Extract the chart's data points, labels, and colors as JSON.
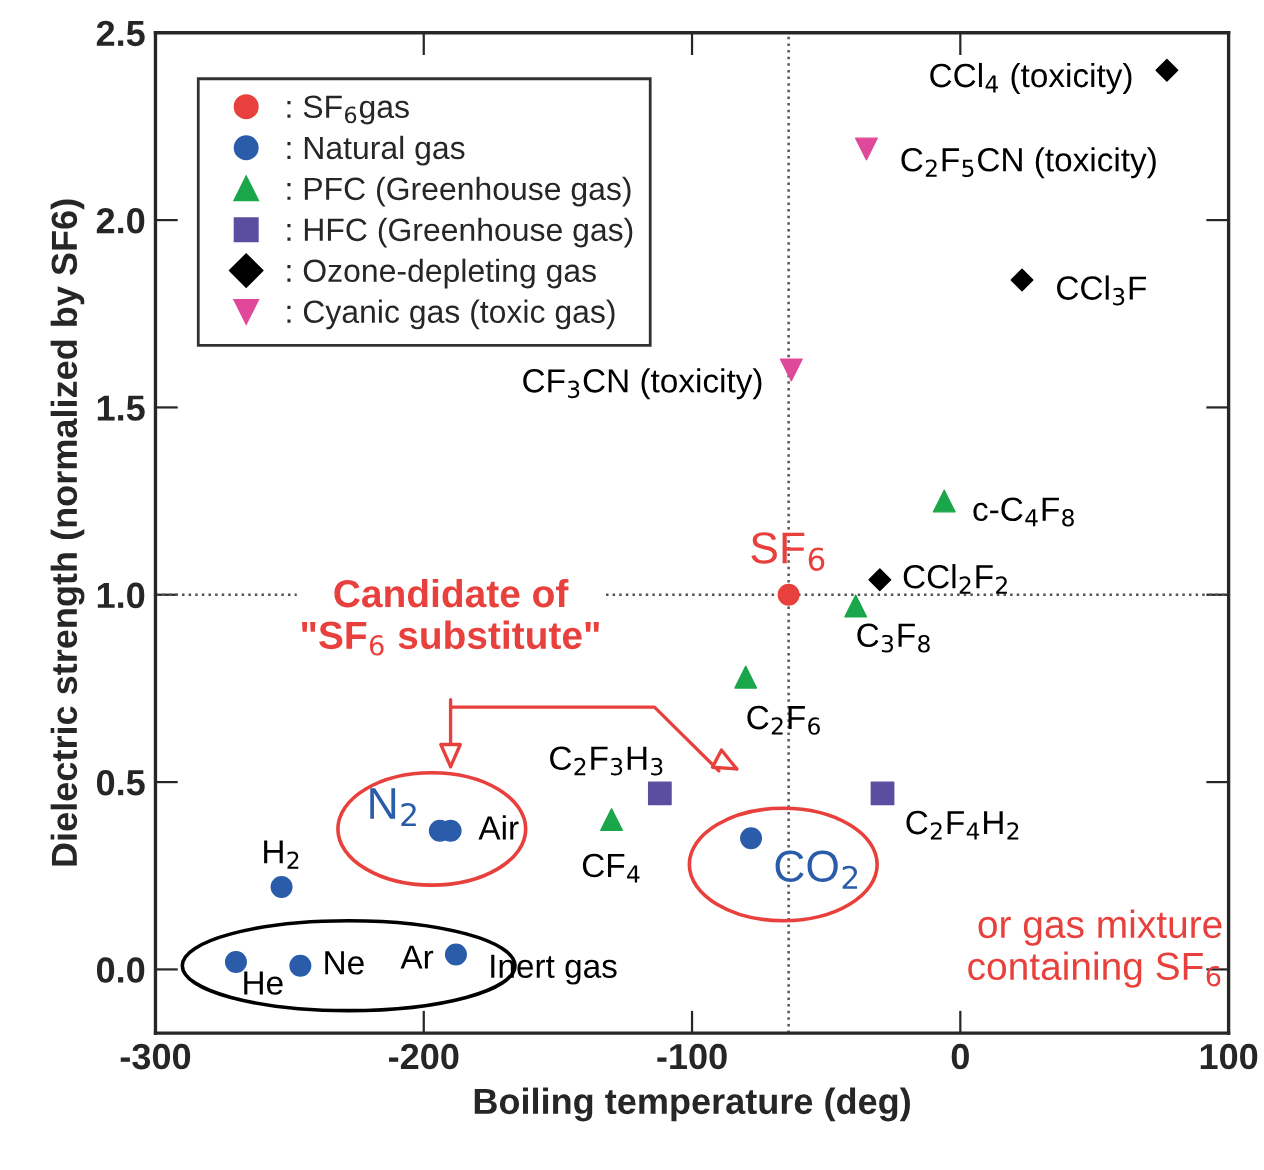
{
  "chart_data": {
    "type": "scatter",
    "xlabel": "Boiling temperature (deg)",
    "ylabel": "Dielectric strength (normalized by SF6)",
    "xlim": [
      -300,
      100
    ],
    "ylim": [
      -0.17,
      2.5
    ],
    "xticks": [
      -300,
      -200,
      -100,
      0,
      100
    ],
    "yticks": [
      {
        "value": 0,
        "label": "0.0"
      },
      {
        "value": 0.5,
        "label": "0.5"
      },
      {
        "value": 1.0,
        "label": "1.0"
      },
      {
        "value": 1.5,
        "label": "1.5"
      },
      {
        "value": 2.0,
        "label": "2.0"
      },
      {
        "value": 2.5,
        "label": "2.5"
      }
    ],
    "grid": false,
    "legend": "top left",
    "series": [
      {
        "name": ": SF$_{6}$gas",
        "color": "#e8403c",
        "marker": "circle",
        "x": [
          -64
        ],
        "values": [
          1.0
        ]
      },
      {
        "name": ": Natural gas",
        "color": "#2a5caa",
        "marker": "circle",
        "x": [
          -78,
          -194,
          -190,
          -253,
          -270,
          -246,
          -188
        ],
        "values": [
          0.35,
          0.37,
          0.37,
          0.22,
          0.02,
          0.01,
          0.04
        ]
      },
      {
        "name": ": PFC (Greenhouse gas)",
        "color": "#1aa64a",
        "marker": "triangle",
        "x": [
          -6,
          -39,
          -80,
          -130
        ],
        "values": [
          1.25,
          0.97,
          0.78,
          0.4
        ]
      },
      {
        "name": ": HFC (Greenhouse gas)",
        "color": "#5b4ea0",
        "marker": "square",
        "x": [
          -112,
          -29
        ],
        "values": [
          0.47,
          0.47
        ]
      },
      {
        "name": ": Ozone-depleting gas",
        "color": "#000000",
        "marker": "diamond",
        "x": [
          77,
          23,
          -30
        ],
        "values": [
          2.4,
          1.84,
          1.04
        ]
      },
      {
        "name": ": Cyanic gas (toxic gas)",
        "color": "#e0489a",
        "marker": "triangle_down",
        "x": [
          -35,
          -63
        ],
        "values": [
          2.19,
          1.6
        ]
      }
    ],
    "ref_lines": [
      {
        "axis": "x",
        "value": -64,
        "line_style": "dotted",
        "color": "#555555"
      },
      {
        "axis": "y",
        "value": 1.0,
        "line_style": "dotted",
        "color": "#555555"
      }
    ],
    "annotations": [
      {
        "text": "CCl$_{4}$ (toxicity)",
        "x": 77,
        "y": 2.4
      },
      {
        "text": "C$_{2}$F$_{5}$CN (toxicity)",
        "x": -35,
        "y": 2.19
      },
      {
        "text": "CCl$_{3}$F",
        "x": 23,
        "y": 1.84
      },
      {
        "text": "CF$_{3}$CN (toxicity)",
        "x": -63,
        "y": 1.6
      },
      {
        "text": "c-C$_{4}$F$_{8}$",
        "x": -6,
        "y": 1.25
      },
      {
        "text": "SF$_{6}$",
        "x": -64,
        "y": 1.0
      },
      {
        "text": "CCl$_{2}$F$_{2}$",
        "x": -30,
        "y": 1.04
      },
      {
        "text": "C$_{3}$F$_{8}$",
        "x": -39,
        "y": 0.97
      },
      {
        "text": "C$_{2}$F$_{6}$",
        "x": -80,
        "y": 0.78
      },
      {
        "text": "C$_{2}$F$_{3}$H$_{3}$",
        "x": -112,
        "y": 0.47
      },
      {
        "text": "C$_{2}$F$_{4}$H$_{2}$",
        "x": -29,
        "y": 0.47
      },
      {
        "text": "CF$_{4}$",
        "x": -130,
        "y": 0.4
      },
      {
        "text": "CO$_{2}$",
        "x": -78,
        "y": 0.35
      },
      {
        "text": "N$_{2}$",
        "x": -194,
        "y": 0.37
      },
      {
        "text": "Air",
        "x": -190,
        "y": 0.37
      },
      {
        "text": "H$_{2}$",
        "x": -253,
        "y": 0.22
      },
      {
        "text": "He",
        "x": -270,
        "y": 0.02
      },
      {
        "text": "Ne",
        "x": -246,
        "y": 0.01
      },
      {
        "text": "Ar",
        "x": -188,
        "y": 0.04
      },
      "Inert gas",
      "Candidate of\n\"SF$_{6}$ substitute\"",
      "or gas mixture\ncontaining SF$_{6}$"
    ]
  }
}
